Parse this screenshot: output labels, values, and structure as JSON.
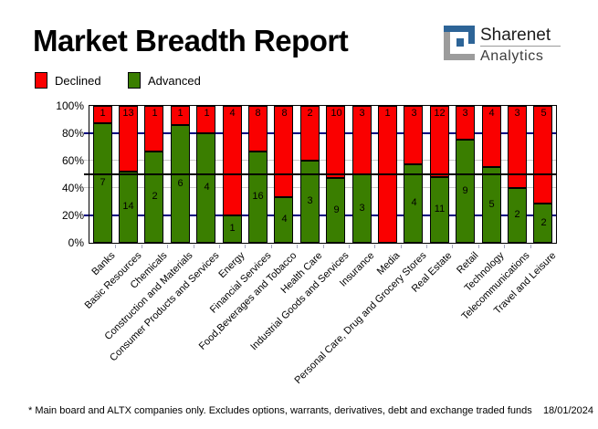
{
  "header": {
    "title": "Market Breadth Report"
  },
  "logo": {
    "brand": "Sharenet",
    "sub": "Analytics",
    "blue": "#2d6497",
    "gray": "#9c9c9c"
  },
  "legend": [
    {
      "label": "Declined",
      "color": "#fa0000"
    },
    {
      "label": "Advanced",
      "color": "#3a7e00"
    }
  ],
  "chart_data": {
    "type": "bar",
    "stacked": true,
    "stacking": "percent",
    "title": "Market Breadth Report",
    "xlabel": "",
    "ylabel": "",
    "ylim": [
      0,
      100
    ],
    "yticks": [
      "100%",
      "80%",
      "60%",
      "40%",
      "20%",
      "0%"
    ],
    "grid": true,
    "gridlines": [
      {
        "pct": 80,
        "color": "#000080"
      },
      {
        "pct": 60,
        "color": "#c8c8c8"
      },
      {
        "pct": 40,
        "color": "#c8c8c8"
      },
      {
        "pct": 20,
        "color": "#000080"
      }
    ],
    "reference_line": {
      "pct": 50,
      "color": "#000000"
    },
    "category_tick_color": "#a8a8c0",
    "categories": [
      "Banks",
      "Basic Resources",
      "Chemicals",
      "Construction and Materials",
      "Consumer Products and Services",
      "Energy",
      "Financial Services",
      "Food,Beverages and Tobacco",
      "Health Care",
      "Industrial Goods and Services",
      "Insurance",
      "Media",
      "Personal Care, Drug and Grocery Stores",
      "Real Estate",
      "Retail",
      "Technology",
      "Telecommunications",
      "Travel and Leisure"
    ],
    "series": [
      {
        "name": "Declined",
        "color": "#fa0000",
        "values": [
          1,
          13,
          1,
          1,
          1,
          4,
          8,
          8,
          2,
          10,
          3,
          1,
          3,
          12,
          3,
          4,
          3,
          5
        ]
      },
      {
        "name": "Advanced",
        "color": "#3a7e00",
        "values": [
          7,
          14,
          2,
          6,
          4,
          1,
          16,
          4,
          3,
          9,
          3,
          0,
          4,
          11,
          9,
          5,
          2,
          2
        ]
      }
    ]
  },
  "footer": {
    "note": "* Main board and ALTX companies only. Excludes options, warrants, derivatives, debt and exchange traded funds",
    "date": "18/01/2024"
  }
}
